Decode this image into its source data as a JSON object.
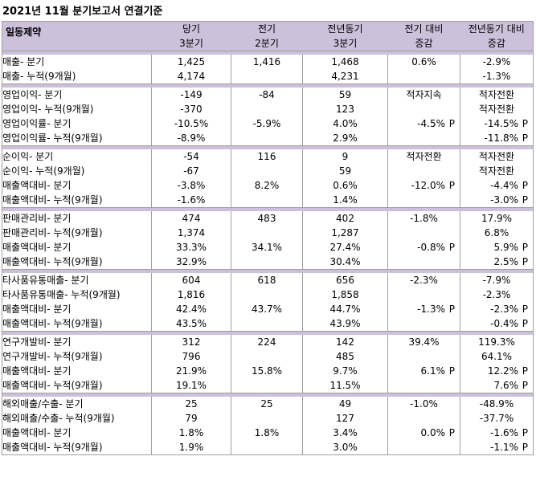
{
  "title": "2021년 11월 분기보고서 연결기준",
  "header": {
    "company": "일동제약",
    "columns": [
      {
        "line1": "당기",
        "line2": "3분기"
      },
      {
        "line1": "전기",
        "line2": "2분기"
      },
      {
        "line1": "전년동기",
        "line2": "3분기"
      },
      {
        "line1": "전기 대비",
        "line2": "증감"
      },
      {
        "line1": "전년동기 대비",
        "line2": "증감"
      }
    ]
  },
  "groups": [
    {
      "rows": [
        {
          "label": "매출- 분기",
          "cur": "1,425",
          "prev": "1,416",
          "yoy": "1,468",
          "qoq": "0.6%",
          "qoq_p": "",
          "yoyc": "-2.9%",
          "yoyc_p": ""
        },
        {
          "label": "매출- 누적(9개월)",
          "cur": "4,174",
          "prev": "",
          "yoy": "4,231",
          "qoq": "",
          "qoq_p": "",
          "yoyc": "-1.3%",
          "yoyc_p": ""
        }
      ]
    },
    {
      "rows": [
        {
          "label": "영업이익- 분기",
          "cur": "-149",
          "prev": "-84",
          "yoy": "59",
          "qoq": "적자지속",
          "qoq_p": "",
          "yoyc": "적자전환",
          "yoyc_p": ""
        },
        {
          "label": "영업이익- 누적(9개월)",
          "cur": "-370",
          "prev": "",
          "yoy": "123",
          "qoq": "",
          "qoq_p": "",
          "yoyc": "적자전환",
          "yoyc_p": ""
        },
        {
          "label": "영업이익률- 분기",
          "cur": "-10.5%",
          "prev": "-5.9%",
          "yoy": "4.0%",
          "qoq": "-4.5%",
          "qoq_p": "P",
          "yoyc": "-14.5%",
          "yoyc_p": "P"
        },
        {
          "label": "영업이익률- 누적(9개월)",
          "cur": "-8.9%",
          "prev": "",
          "yoy": "2.9%",
          "qoq": "",
          "qoq_p": "",
          "yoyc": "-11.8%",
          "yoyc_p": "P"
        }
      ]
    },
    {
      "rows": [
        {
          "label": "순이익- 분기",
          "cur": "-54",
          "prev": "116",
          "yoy": "9",
          "qoq": "적자전환",
          "qoq_p": "",
          "yoyc": "적자전환",
          "yoyc_p": ""
        },
        {
          "label": "순이익- 누적(9개월)",
          "cur": "-67",
          "prev": "",
          "yoy": "59",
          "qoq": "",
          "qoq_p": "",
          "yoyc": "적자전환",
          "yoyc_p": ""
        },
        {
          "label": "매출액대비- 분기",
          "cur": "-3.8%",
          "prev": "8.2%",
          "yoy": "0.6%",
          "qoq": "-12.0%",
          "qoq_p": "P",
          "yoyc": "-4.4%",
          "yoyc_p": "P"
        },
        {
          "label": "매출액대비- 누적(9개월)",
          "cur": "-1.6%",
          "prev": "",
          "yoy": "1.4%",
          "qoq": "",
          "qoq_p": "",
          "yoyc": "-3.0%",
          "yoyc_p": "P"
        }
      ]
    },
    {
      "rows": [
        {
          "label": "판매관리비- 분기",
          "cur": "474",
          "prev": "483",
          "yoy": "402",
          "qoq": "-1.8%",
          "qoq_p": "",
          "yoyc": "17.9%",
          "yoyc_p": ""
        },
        {
          "label": "판매관리비- 누적(9개월)",
          "cur": "1,374",
          "prev": "",
          "yoy": "1,287",
          "qoq": "",
          "qoq_p": "",
          "yoyc": "6.8%",
          "yoyc_p": ""
        },
        {
          "label": "매출액대비- 분기",
          "cur": "33.3%",
          "prev": "34.1%",
          "yoy": "27.4%",
          "qoq": "-0.8%",
          "qoq_p": "P",
          "yoyc": "5.9%",
          "yoyc_p": "P"
        },
        {
          "label": "매출액대비- 누적(9개월)",
          "cur": "32.9%",
          "prev": "",
          "yoy": "30.4%",
          "qoq": "",
          "qoq_p": "",
          "yoyc": "2.5%",
          "yoyc_p": "P"
        }
      ]
    },
    {
      "rows": [
        {
          "label": "타사품유통매출- 분기",
          "cur": "604",
          "prev": "618",
          "yoy": "656",
          "qoq": "-2.3%",
          "qoq_p": "",
          "yoyc": "-7.9%",
          "yoyc_p": ""
        },
        {
          "label": "타사품유통매출- 누적(9개월)",
          "cur": "1,816",
          "prev": "",
          "yoy": "1,858",
          "qoq": "",
          "qoq_p": "",
          "yoyc": "-2.3%",
          "yoyc_p": ""
        },
        {
          "label": "매출액대비- 분기",
          "cur": "42.4%",
          "prev": "43.7%",
          "yoy": "44.7%",
          "qoq": "-1.3%",
          "qoq_p": "P",
          "yoyc": "-2.3%",
          "yoyc_p": "P"
        },
        {
          "label": "매출액대비- 누적(9개월)",
          "cur": "43.5%",
          "prev": "",
          "yoy": "43.9%",
          "qoq": "",
          "qoq_p": "",
          "yoyc": "-0.4%",
          "yoyc_p": "P"
        }
      ]
    },
    {
      "rows": [
        {
          "label": "연구개발비- 분기",
          "cur": "312",
          "prev": "224",
          "yoy": "142",
          "qoq": "39.4%",
          "qoq_p": "",
          "yoyc": "119.3%",
          "yoyc_p": ""
        },
        {
          "label": "연구개발비- 누적(9개월)",
          "cur": "796",
          "prev": "",
          "yoy": "485",
          "qoq": "",
          "qoq_p": "",
          "yoyc": "64.1%",
          "yoyc_p": ""
        },
        {
          "label": "매출액대비- 분기",
          "cur": "21.9%",
          "prev": "15.8%",
          "yoy": "9.7%",
          "qoq": "6.1%",
          "qoq_p": "P",
          "yoyc": "12.2%",
          "yoyc_p": "P"
        },
        {
          "label": "매출액대비- 누적(9개월)",
          "cur": "19.1%",
          "prev": "",
          "yoy": "11.5%",
          "qoq": "",
          "qoq_p": "",
          "yoyc": "7.6%",
          "yoyc_p": "P"
        }
      ]
    },
    {
      "rows": [
        {
          "label": "해외매출/수출- 분기",
          "cur": "25",
          "prev": "25",
          "yoy": "49",
          "qoq": "-1.0%",
          "qoq_p": "",
          "yoyc": "-48.9%",
          "yoyc_p": ""
        },
        {
          "label": "해외매출/수출- 누적(9개월)",
          "cur": "79",
          "prev": "",
          "yoy": "127",
          "qoq": "",
          "qoq_p": "",
          "yoyc": "-37.7%",
          "yoyc_p": ""
        },
        {
          "label": "매출액대비- 분기",
          "cur": "1.8%",
          "prev": "1.8%",
          "yoy": "3.4%",
          "qoq": "0.0%",
          "qoq_p": "P",
          "yoyc": "-1.6%",
          "yoyc_p": "P"
        },
        {
          "label": "매출액대비- 누적(9개월)",
          "cur": "1.9%",
          "prev": "",
          "yoy": "3.0%",
          "qoq": "",
          "qoq_p": "",
          "yoyc": "-1.1%",
          "yoyc_p": "P"
        }
      ]
    }
  ]
}
